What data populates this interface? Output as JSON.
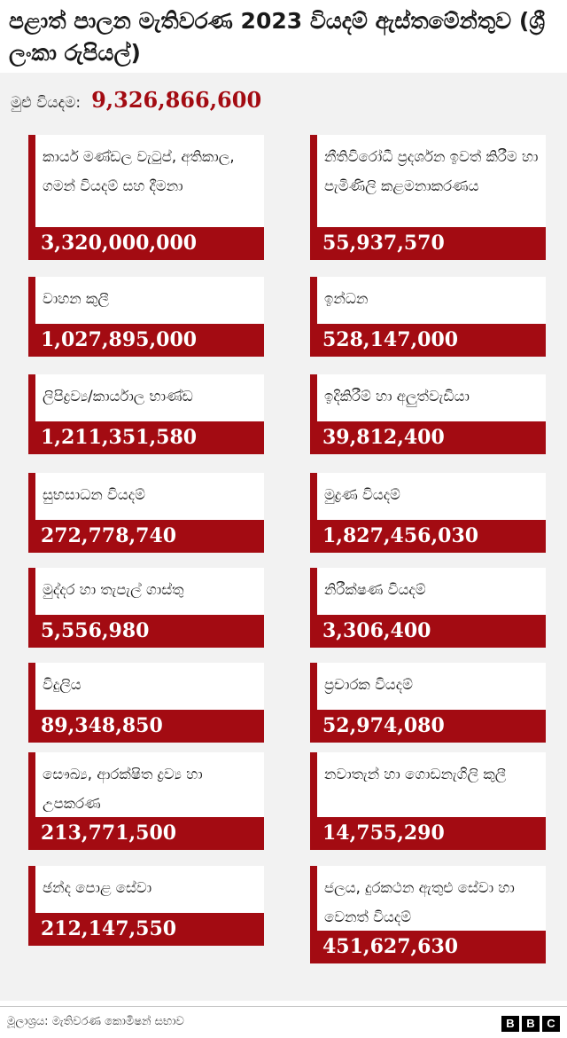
{
  "title": "පළාත් පාලන මැතිවරණ 2023 වියදම් ඇස්තමේන්තුව (ශ්‍රී ලංකා රුපියල්)",
  "total": {
    "label": "මුළු වියදම:",
    "value": "9,326,866,600"
  },
  "items": [
    {
      "label": "කාර්ය මණ්ඩල වැටුප්, අතිකාල, ගමන් වියදම් සහ දීමනා",
      "amount": "3,320,000,000"
    },
    {
      "label": "නීතිවිරෝධී ප්‍රදර්ශන ඉවත් කිරීම හා පැමිණිලි කළමනාකරණය",
      "amount": "55,937,570"
    },
    {
      "label": "වාහන කුලී",
      "amount": "1,027,895,000"
    },
    {
      "label": "ඉන්ධන",
      "amount": "528,147,000"
    },
    {
      "label": "ලිපිද්‍රව්‍ය/කාර්යාල භාණ්ඩ",
      "amount": "1,211,351,580"
    },
    {
      "label": "ඉදිකිරීම් හා අලුත්වැඩියා",
      "amount": "39,812,400"
    },
    {
      "label": "සුභසාධන වියදම්",
      "amount": "272,778,740"
    },
    {
      "label": "මුද්‍රණ වියදම්",
      "amount": "1,827,456,030"
    },
    {
      "label": "මුද්දර හා තැපැල් ගාස්තු",
      "amount": "5,556,980"
    },
    {
      "label": "නිරීක්ෂණ වියදම්",
      "amount": "3,306,400"
    },
    {
      "label": "විදුලිය",
      "amount": "89,348,850"
    },
    {
      "label": "ප්‍රචාරක වියදම්",
      "amount": "52,974,080"
    },
    {
      "label": "සෞඛ්‍ය, ආරක්ෂිත ද්‍රව්‍ය හා උපකරණ",
      "amount": "213,771,500"
    },
    {
      "label": "නවාතැන් හා ගොඩනැගිලි කුලී",
      "amount": "14,755,290"
    },
    {
      "label": "ඡන්ද පොළ සේවා",
      "amount": "212,147,550"
    },
    {
      "label": "ජලය, දුරකථන ඇතුළු සේවා හා වෙනත් වියදම්",
      "amount": "451,627,630"
    }
  ],
  "source": "මූලාශ්‍රය: මැතිවරණ කොමිෂන් සභාව",
  "logo": [
    "B",
    "B",
    "C"
  ]
}
